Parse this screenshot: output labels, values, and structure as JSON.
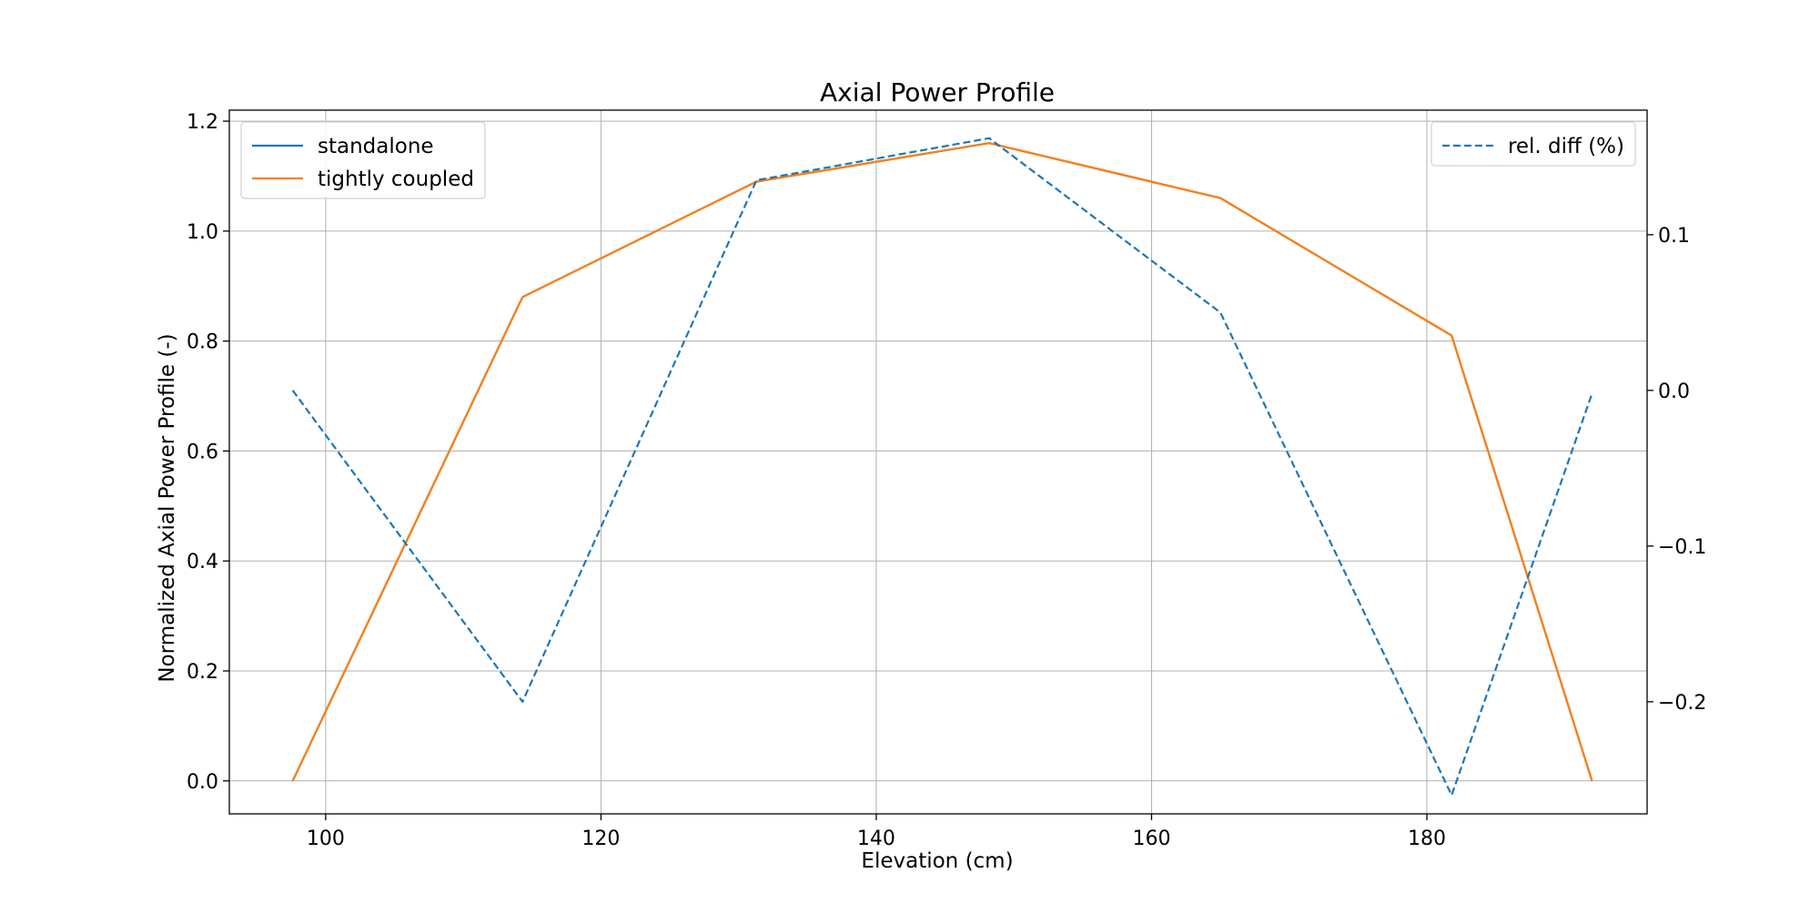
{
  "chart_data": {
    "type": "line",
    "title": "Axial Power Profile",
    "xlabel": "Elevation (cm)",
    "ylabel": "Normalized Axial Power Profile (-)",
    "ylabel_right": "",
    "xlim": [
      93,
      196
    ],
    "ylim": [
      -0.06,
      1.22
    ],
    "ylim_right": [
      -0.272,
      0.18
    ],
    "xticks": [
      100,
      120,
      140,
      160,
      180
    ],
    "yticks": [
      0.0,
      0.2,
      0.4,
      0.6,
      0.8,
      1.0,
      1.2
    ],
    "yticks_right": [
      -0.2,
      -0.1,
      0.0,
      0.1
    ],
    "grid": true,
    "legend_left_position": "top-left",
    "legend_right_position": "top-right",
    "series": [
      {
        "name": "standalone",
        "axis": "left",
        "color": "#1f77b4",
        "style": "solid",
        "x": [
          97.6,
          114.3,
          131.3,
          148.2,
          165.0,
          181.8,
          192.0
        ],
        "values": [
          0.0,
          0.88,
          1.09,
          1.16,
          1.06,
          0.81,
          0.0
        ]
      },
      {
        "name": "tightly coupled",
        "axis": "left",
        "color": "#ff7f0e",
        "style": "solid",
        "x": [
          97.6,
          114.3,
          131.3,
          148.2,
          165.0,
          181.8,
          192.0
        ],
        "values": [
          0.0,
          0.88,
          1.09,
          1.16,
          1.06,
          0.81,
          0.0
        ]
      },
      {
        "name": "rel. diff (%)",
        "axis": "right",
        "color": "#1f77b4",
        "style": "dashed",
        "x": [
          97.6,
          114.3,
          131.3,
          148.2,
          165.0,
          181.8,
          192.0
        ],
        "values": [
          0.0,
          -0.2,
          0.135,
          0.162,
          0.05,
          -0.26,
          -0.002
        ]
      }
    ]
  }
}
